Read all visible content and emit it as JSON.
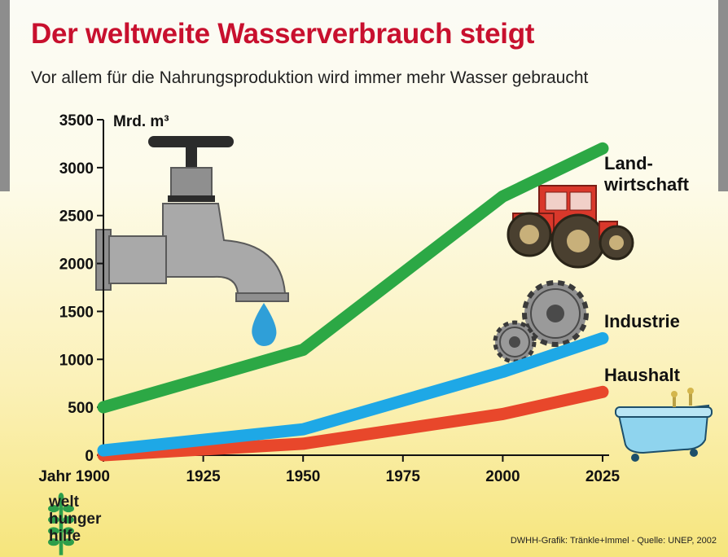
{
  "title": "Der weltweite Wasserverbrauch steigt",
  "subtitle": "Vor allem für die Nahrungsproduktion wird immer mehr Wasser gebraucht",
  "credit": "DWHH-Grafik: Tränkle+Immel - Quelle: UNEP, 2002",
  "logo": {
    "lines": [
      "welt",
      "hunger",
      "hilfe"
    ],
    "color": "#2e9e4a"
  },
  "chart_data": {
    "type": "line",
    "unit_label": "Mrd. m³",
    "x_prefix": "Jahr",
    "x": [
      1900,
      1925,
      1950,
      1975,
      2000,
      2025
    ],
    "x_tick_labels": [
      "Jahr 1900",
      "1925",
      "1950",
      "1975",
      "2000",
      "2025"
    ],
    "xlim": [
      1900,
      2025
    ],
    "ylim": [
      0,
      3500
    ],
    "y_ticks": [
      0,
      500,
      1000,
      1500,
      2000,
      2500,
      3000,
      3500
    ],
    "series": [
      {
        "name": "Land-wirtschaft",
        "label_lines": [
          "Land-",
          "wirtschaft"
        ],
        "color": "#2ca845",
        "points": [
          [
            1900,
            500
          ],
          [
            1950,
            1100
          ],
          [
            2000,
            2700
          ],
          [
            2025,
            3200
          ]
        ]
      },
      {
        "name": "Industrie",
        "label_lines": [
          "Industrie"
        ],
        "color": "#1ea8e6",
        "points": [
          [
            1900,
            50
          ],
          [
            1950,
            270
          ],
          [
            2000,
            870
          ],
          [
            2025,
            1220
          ]
        ]
      },
      {
        "name": "Haushalt",
        "label_lines": [
          "Haushalt"
        ],
        "color": "#e8472b",
        "points": [
          [
            1900,
            0
          ],
          [
            1950,
            120
          ],
          [
            2000,
            430
          ],
          [
            2025,
            660
          ]
        ]
      }
    ]
  }
}
